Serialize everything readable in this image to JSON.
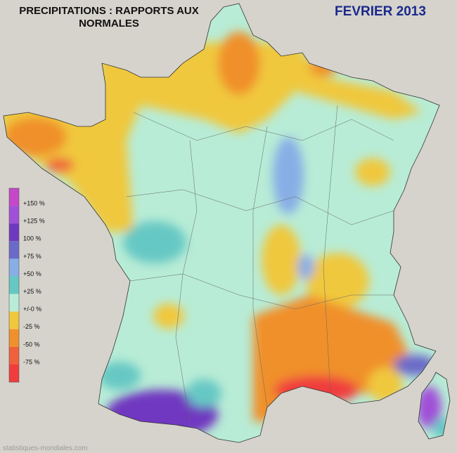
{
  "header": {
    "title_lines": [
      "PRECIPITATIONS : RAPPORTS AUX",
      "NORMALES"
    ],
    "period": "FEVRIER 2013"
  },
  "legend": {
    "colors": [
      "#c448c8",
      "#a050d8",
      "#7038c0",
      "#6a6ac8",
      "#88aee6",
      "#66c8c4",
      "#b8ecd6",
      "#f0c83c",
      "#f0902c",
      "#f0603c",
      "#f03c3c"
    ],
    "labels": [
      "+150 %",
      "+125 %",
      "100 %",
      "+75 %",
      "+50 %",
      "+25 %",
      "+/-0 %",
      "-25 %",
      "-50 %",
      "-75 %"
    ]
  },
  "footer": {
    "source": "statistiques-mondiales.com"
  }
}
